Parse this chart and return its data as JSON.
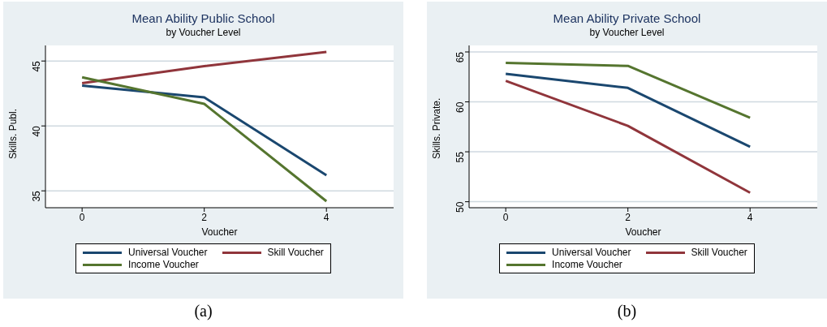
{
  "chart_data": [
    {
      "type": "line",
      "title": "Mean Ability Public School",
      "subtitle": "by Voucher Level",
      "xlabel": "Voucher",
      "ylabel": "Skills. Publ.",
      "x": [
        0,
        2,
        4
      ],
      "xlim": [
        -0.6,
        5.1
      ],
      "xticks": [
        0,
        2,
        4
      ],
      "ylim": [
        33.7,
        46.2
      ],
      "yticks": [
        35,
        40,
        45
      ],
      "grid": "y",
      "legend": "bottom",
      "annotations": [
        "(a)"
      ],
      "series": [
        {
          "name": "Universal Voucher",
          "color": "#1a476f",
          "values": [
            43.1,
            42.2,
            36.2
          ]
        },
        {
          "name": "Skill Voucher",
          "color": "#90353b",
          "values": [
            43.3,
            44.6,
            45.7
          ]
        },
        {
          "name": "Income Voucher",
          "color": "#55752f",
          "values": [
            43.75,
            41.7,
            34.2
          ]
        }
      ]
    },
    {
      "type": "line",
      "title": "Mean Ability Private School",
      "subtitle": "by Voucher Level",
      "xlabel": "Voucher",
      "ylabel": "Skills. Private.",
      "x": [
        0,
        2,
        4
      ],
      "xlim": [
        -0.6,
        5.1
      ],
      "xticks": [
        0,
        2,
        4
      ],
      "ylim": [
        49.4,
        65.65
      ],
      "yticks": [
        50,
        55,
        60,
        65
      ],
      "grid": "y",
      "legend": "bottom",
      "annotations": [
        "(b)"
      ],
      "series": [
        {
          "name": "Universal Voucher",
          "color": "#1a476f",
          "values": [
            62.8,
            61.4,
            55.5
          ]
        },
        {
          "name": "Skill Voucher",
          "color": "#90353b",
          "values": [
            62.1,
            57.6,
            50.9
          ]
        },
        {
          "name": "Income Voucher",
          "color": "#55752f",
          "values": [
            63.9,
            63.6,
            58.4
          ]
        }
      ]
    }
  ]
}
